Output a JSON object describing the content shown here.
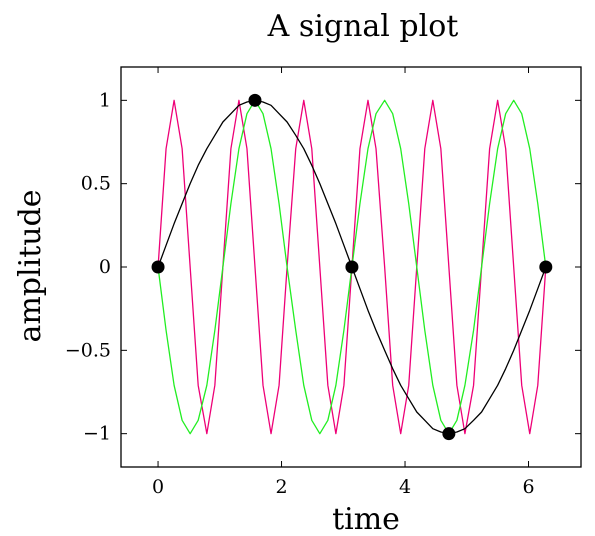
{
  "chart_data": {
    "type": "line",
    "title": "A signal plot",
    "xlabel": "time",
    "ylabel": "amplitude",
    "xlim": [
      -0.6,
      6.85
    ],
    "ylim": [
      -1.2,
      1.2
    ],
    "grid": false,
    "x_ticks": [
      0,
      2,
      4,
      6
    ],
    "y_ticks": [
      1,
      0.5,
      0,
      -0.5,
      -1
    ],
    "x_tick_labels": [
      "0",
      "2",
      "4",
      "6"
    ],
    "y_tick_labels": [
      "1",
      "0.5",
      "0",
      "−0.5",
      "−1"
    ],
    "series": [
      {
        "color": "#ee0077",
        "x": [
          0.0,
          0.13,
          0.26,
          0.39,
          0.52,
          0.65,
          0.79,
          0.92,
          1.05,
          1.18,
          1.31,
          1.44,
          1.57,
          1.7,
          1.83,
          1.96,
          2.09,
          2.23,
          2.36,
          2.49,
          2.62,
          2.75,
          2.88,
          3.01,
          3.14,
          3.27,
          3.4,
          3.53,
          3.67,
          3.8,
          3.93,
          4.06,
          4.19,
          4.32,
          4.45,
          4.58,
          4.71,
          4.84,
          4.97,
          5.11,
          5.24,
          5.37,
          5.5,
          5.63,
          5.76,
          5.89,
          6.02,
          6.15,
          6.28
        ],
        "y": [
          0.0,
          0.71,
          1.0,
          0.71,
          0.0,
          -0.71,
          -1.0,
          -0.71,
          0.0,
          0.71,
          1.0,
          0.71,
          0.0,
          -0.71,
          -1.0,
          -0.71,
          0.0,
          0.71,
          1.0,
          0.71,
          0.0,
          -0.71,
          -1.0,
          -0.71,
          0.0,
          0.71,
          1.0,
          0.71,
          0.0,
          -0.71,
          -1.0,
          -0.71,
          0.0,
          0.71,
          1.0,
          0.71,
          0.0,
          -0.71,
          -1.0,
          -0.71,
          0.0,
          0.71,
          1.0,
          0.71,
          0.0,
          -0.71,
          -1.0,
          -0.71,
          0.0
        ]
      },
      {
        "color": "#22ee22",
        "x": [
          0.0,
          0.13,
          0.26,
          0.39,
          0.52,
          0.65,
          0.79,
          0.92,
          1.05,
          1.18,
          1.31,
          1.44,
          1.57,
          1.7,
          1.83,
          1.96,
          2.09,
          2.23,
          2.36,
          2.49,
          2.62,
          2.75,
          2.88,
          3.01,
          3.14,
          3.27,
          3.4,
          3.53,
          3.67,
          3.8,
          3.93,
          4.06,
          4.19,
          4.32,
          4.45,
          4.58,
          4.71,
          4.84,
          4.97,
          5.11,
          5.24,
          5.37,
          5.5,
          5.63,
          5.76,
          5.89,
          6.02,
          6.15,
          6.28
        ],
        "y": [
          0.0,
          -0.38,
          -0.71,
          -0.92,
          -1.0,
          -0.92,
          -0.71,
          -0.38,
          0.0,
          0.38,
          0.71,
          0.92,
          1.0,
          0.92,
          0.71,
          0.38,
          0.0,
          -0.38,
          -0.71,
          -0.92,
          -1.0,
          -0.92,
          -0.71,
          -0.38,
          0.0,
          0.38,
          0.71,
          0.92,
          1.0,
          0.92,
          0.71,
          0.38,
          0.0,
          -0.38,
          -0.71,
          -0.92,
          -1.0,
          -0.92,
          -0.71,
          -0.38,
          0.0,
          0.38,
          0.71,
          0.92,
          1.0,
          0.92,
          0.71,
          0.38,
          0.0
        ]
      },
      {
        "color": "#000000",
        "x": [
          0.0,
          0.13,
          0.26,
          0.39,
          0.52,
          0.65,
          0.79,
          0.92,
          1.05,
          1.18,
          1.31,
          1.44,
          1.57,
          1.7,
          1.83,
          1.96,
          2.09,
          2.23,
          2.36,
          2.49,
          2.62,
          2.75,
          2.88,
          3.01,
          3.14,
          3.27,
          3.4,
          3.53,
          3.67,
          3.8,
          3.93,
          4.06,
          4.19,
          4.32,
          4.45,
          4.58,
          4.71,
          4.84,
          4.97,
          5.11,
          5.24,
          5.37,
          5.5,
          5.63,
          5.76,
          5.89,
          6.02,
          6.15,
          6.28
        ],
        "y": [
          0.0,
          0.13,
          0.26,
          0.38,
          0.5,
          0.61,
          0.71,
          0.79,
          0.87,
          0.92,
          0.97,
          0.99,
          1.0,
          0.99,
          0.97,
          0.92,
          0.87,
          0.79,
          0.71,
          0.61,
          0.5,
          0.38,
          0.26,
          0.13,
          0.0,
          -0.13,
          -0.26,
          -0.38,
          -0.5,
          -0.61,
          -0.71,
          -0.79,
          -0.87,
          -0.92,
          -0.97,
          -0.99,
          -1.0,
          -0.99,
          -0.97,
          -0.92,
          -0.87,
          -0.79,
          -0.71,
          -0.61,
          -0.5,
          -0.38,
          -0.26,
          -0.13,
          0.0
        ]
      }
    ],
    "markers": {
      "color": "#000000",
      "x": [
        0.0,
        1.57,
        3.14,
        4.71,
        6.28
      ],
      "y": [
        0.0,
        1.0,
        0.0,
        -1.0,
        0.0
      ]
    }
  }
}
